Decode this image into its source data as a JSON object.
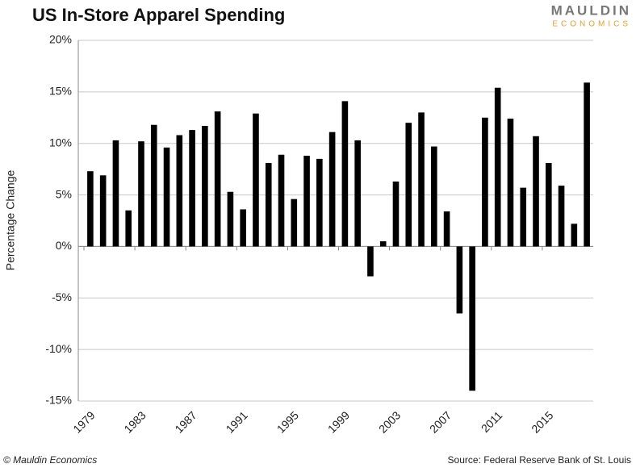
{
  "chart_data": {
    "type": "bar",
    "title": "US In-Store Apparel Spending",
    "logo": {
      "top": "MAULDIN",
      "bottom": "ECONOMICS"
    },
    "ylabel": "Percentage Change",
    "footer_left": "© Mauldin Economics",
    "footer_right": "Source: Federal Reserve Bank of St. Louis",
    "categories": [
      "1979",
      null,
      null,
      null,
      "1983",
      null,
      null,
      null,
      "1987",
      null,
      null,
      null,
      "1991",
      null,
      null,
      null,
      "1995",
      null,
      null,
      null,
      "1999",
      null,
      null,
      null,
      "2003",
      null,
      null,
      null,
      "2007",
      null,
      null,
      null,
      "2011",
      null,
      null,
      null,
      "2015",
      null,
      null,
      null
    ],
    "values": [
      7.3,
      6.9,
      10.3,
      3.5,
      10.2,
      11.8,
      9.6,
      10.8,
      11.3,
      11.7,
      13.1,
      5.3,
      3.6,
      12.9,
      8.1,
      8.9,
      4.6,
      8.8,
      8.5,
      11.1,
      14.1,
      10.3,
      -2.9,
      0.5,
      6.3,
      12.0,
      13.0,
      9.7,
      3.4,
      -6.5,
      -14.0,
      12.5,
      15.4,
      12.4,
      5.7,
      10.7,
      8.1,
      5.9,
      2.2,
      15.9
    ],
    "color": "#000000",
    "ylim": [
      -15,
      20
    ],
    "yticks": [
      {
        "value": -15,
        "label": "-15%"
      },
      {
        "value": -10,
        "label": "-10%"
      },
      {
        "value": -5,
        "label": "-5%"
      },
      {
        "value": 0,
        "label": "0%"
      },
      {
        "value": 5,
        "label": "5%"
      },
      {
        "value": 10,
        "label": "10%"
      },
      {
        "value": 15,
        "label": "15%"
      },
      {
        "value": 20,
        "label": "20%"
      }
    ],
    "grid": true
  }
}
